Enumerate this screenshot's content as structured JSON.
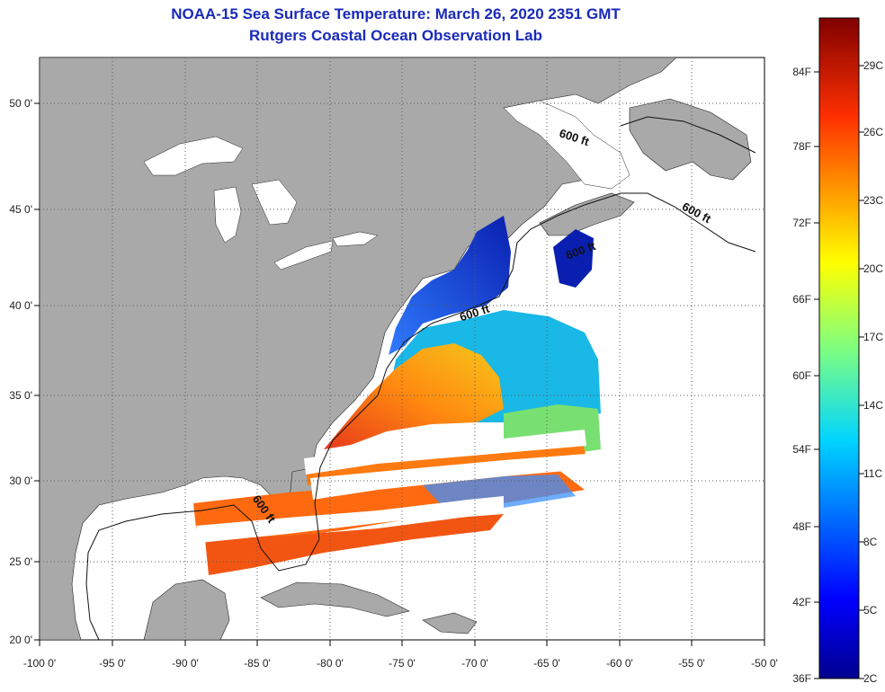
{
  "title": "NOAA-15 Sea Surface Temperature:  March 26, 2020 2351 GMT",
  "subtitle": "Rutgers Coastal Ocean Observation Lab",
  "lat_labels": [
    "50 0'",
    "45 0'",
    "40 0'",
    "35 0'",
    "30 0'",
    "25 0'",
    "20 0'"
  ],
  "lon_labels": [
    "-100 0'",
    "-95 0'",
    "-90 0'",
    "-85 0'",
    "-80 0'",
    "-75 0'",
    "-70 0'",
    "-65 0'",
    "-60 0'",
    "-55 0'",
    "-50 0'"
  ],
  "isobath_labels": [
    "600 ft",
    "600 ft",
    "600 ft",
    "600 ft",
    "600 ft"
  ],
  "colorbar": {
    "f_labels": [
      "84F",
      "78F",
      "72F",
      "66F",
      "60F",
      "54F",
      "48F",
      "42F",
      "36F"
    ],
    "c_labels": [
      "29C",
      "26C",
      "23C",
      "20C",
      "17C",
      "14C",
      "11C",
      "8C",
      "5C",
      "2C"
    ],
    "min_c": 2,
    "max_c": 31
  },
  "colors": {
    "land": "#a9a9a9",
    "ocean_nodata": "#ffffff",
    "title": "#1a2ab8",
    "cold": "#0a1fb0",
    "warm": "#e8391a"
  }
}
